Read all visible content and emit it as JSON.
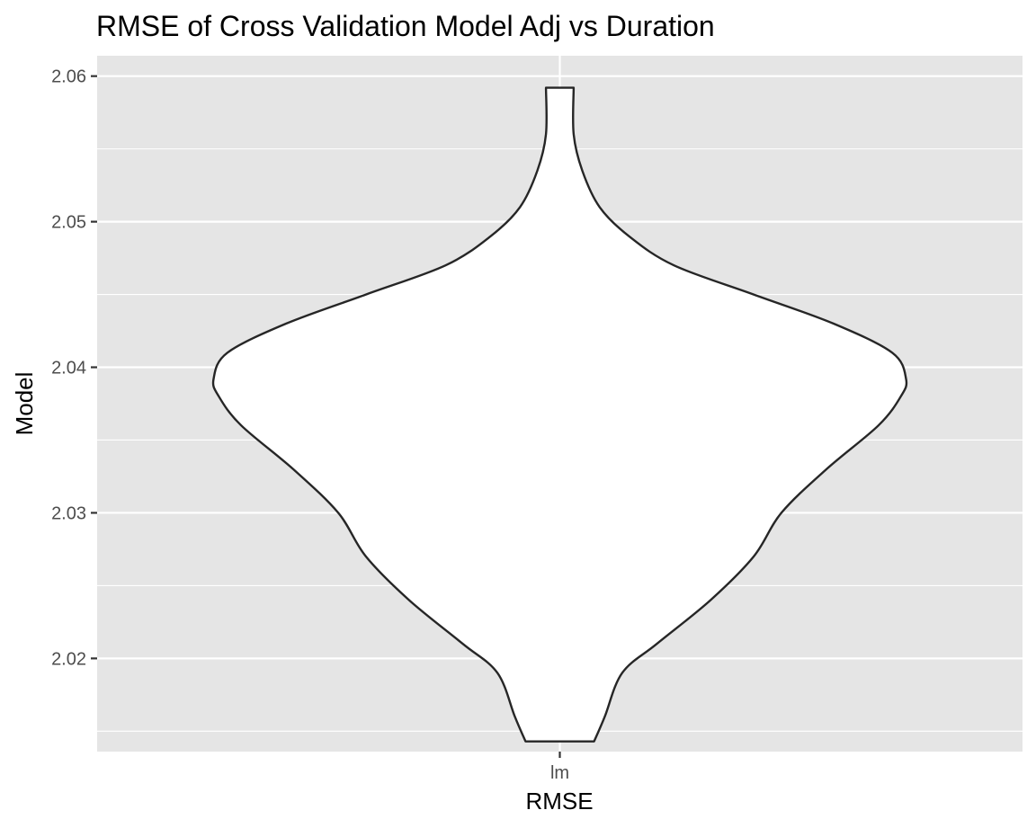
{
  "chart_data": {
    "type": "violin",
    "title": "RMSE of Cross Validation Model Adj vs Duration",
    "xlabel": "RMSE",
    "ylabel": "Model",
    "categories": [
      "lm"
    ],
    "ylim": [
      2.0136,
      2.0614
    ],
    "yticks": [
      2.02,
      2.03,
      2.04,
      2.05,
      2.06
    ],
    "ytick_labels": [
      "2.02",
      "2.03",
      "2.04",
      "2.05",
      "2.06"
    ],
    "grid": true,
    "violin": {
      "category": "lm",
      "min": 2.0143,
      "max": 2.0592,
      "density_profile": [
        {
          "y": 2.0143,
          "rel_width": 0.099
        },
        {
          "y": 2.016,
          "rel_width": 0.13
        },
        {
          "y": 2.019,
          "rel_width": 0.18
        },
        {
          "y": 2.021,
          "rel_width": 0.28
        },
        {
          "y": 2.024,
          "rel_width": 0.435
        },
        {
          "y": 2.027,
          "rel_width": 0.56
        },
        {
          "y": 2.03,
          "rel_width": 0.64
        },
        {
          "y": 2.033,
          "rel_width": 0.77
        },
        {
          "y": 2.036,
          "rel_width": 0.92
        },
        {
          "y": 2.038,
          "rel_width": 0.985
        },
        {
          "y": 2.0392,
          "rel_width": 1.0
        },
        {
          "y": 2.041,
          "rel_width": 0.96
        },
        {
          "y": 2.043,
          "rel_width": 0.79
        },
        {
          "y": 2.045,
          "rel_width": 0.56
        },
        {
          "y": 2.047,
          "rel_width": 0.33
        },
        {
          "y": 2.049,
          "rel_width": 0.2
        },
        {
          "y": 2.051,
          "rel_width": 0.115
        },
        {
          "y": 2.0535,
          "rel_width": 0.065
        },
        {
          "y": 2.056,
          "rel_width": 0.04
        },
        {
          "y": 2.0592,
          "rel_width": 0.04
        }
      ]
    },
    "colors": {
      "panel": "#e5e5e5",
      "grid_major": "#ffffff",
      "fill": "#ffffff",
      "outline": "#262626"
    }
  }
}
